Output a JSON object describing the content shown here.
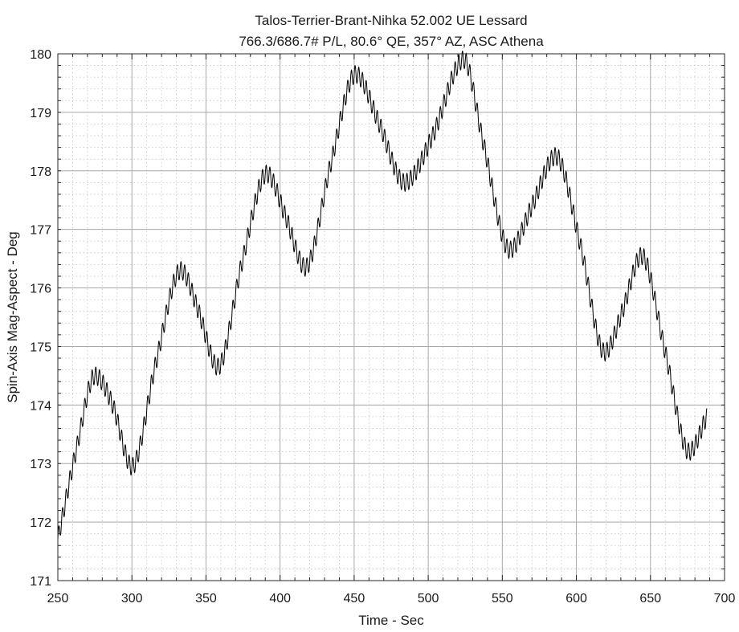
{
  "chart_data": {
    "type": "line",
    "title_lines": [
      "Talos-Terrier-Brant-Nihka 52.002 UE Lessard",
      "766.3/686.7# P/L, 80.6° QE, 357° AZ, ASC Athena"
    ],
    "xlabel": "Time - Sec",
    "ylabel": "Spin-Axis Mag-Aspect - Deg",
    "xlim": [
      250,
      700
    ],
    "ylim": [
      171,
      180
    ],
    "xticks": [
      250,
      300,
      350,
      400,
      450,
      500,
      550,
      600,
      650,
      700
    ],
    "yticks": [
      171,
      172,
      173,
      174,
      175,
      176,
      177,
      178,
      179,
      180
    ],
    "xtick_labels": [
      "250",
      "300",
      "350",
      "400",
      "450",
      "500",
      "550",
      "600",
      "650",
      "700"
    ],
    "ytick_labels": [
      "171",
      "172",
      "173",
      "174",
      "175",
      "176",
      "177",
      "178",
      "179",
      "180"
    ],
    "grid": true,
    "minor_grid": true,
    "line_color": "#000000",
    "series": [
      {
        "x": [
          250,
          263,
          275,
          287,
          300,
          316,
          333,
          345,
          358,
          374,
          391,
          404,
          417,
          434,
          451,
          467,
          484,
          503,
          524,
          537,
          555,
          570,
          586,
          603,
          619,
          631,
          644,
          660,
          676,
          688
        ],
        "y": [
          171.7,
          173.3,
          174.5,
          174.0,
          172.95,
          174.7,
          176.3,
          175.6,
          174.65,
          176.4,
          177.95,
          177.2,
          176.35,
          178.1,
          179.65,
          178.8,
          177.8,
          178.6,
          179.9,
          178.5,
          176.65,
          177.4,
          178.25,
          176.7,
          174.9,
          175.6,
          176.55,
          174.9,
          173.2,
          173.8
        ],
        "oscillation_amplitude": 0.15,
        "oscillation_period": 2.5
      }
    ]
  }
}
